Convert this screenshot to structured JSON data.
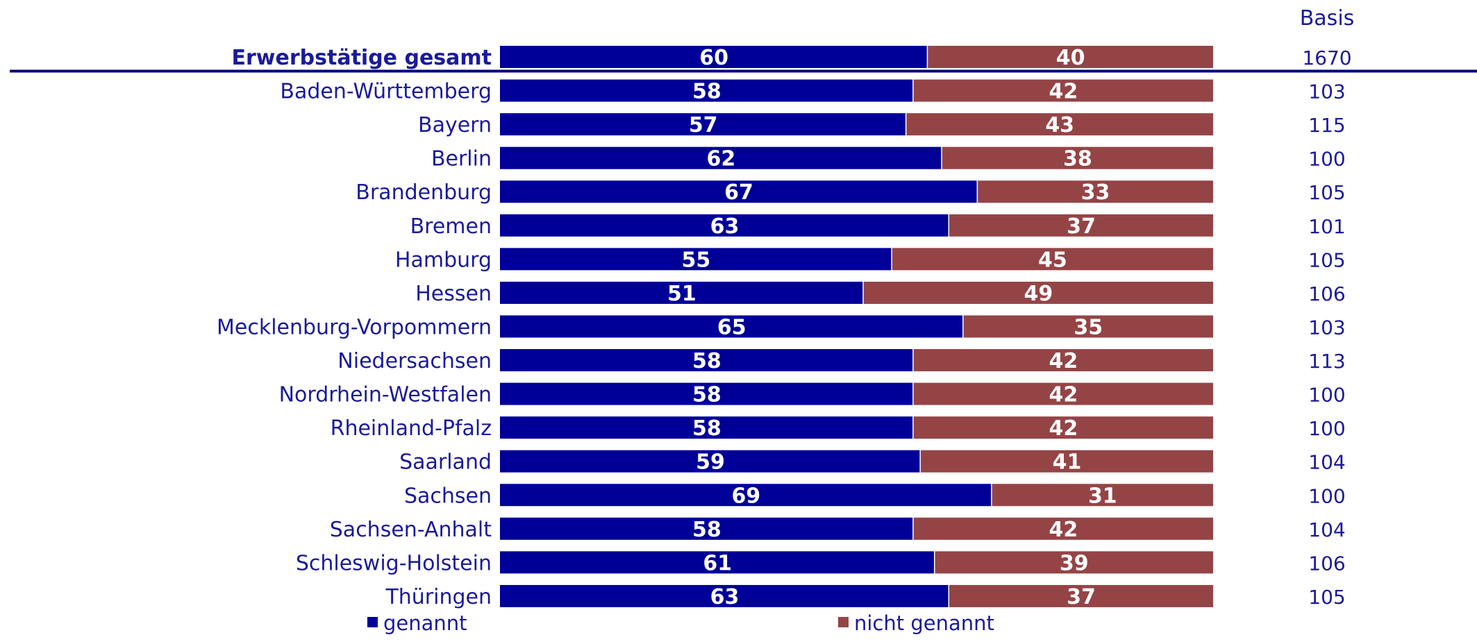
{
  "chart_data": {
    "type": "bar",
    "stacked": true,
    "orientation": "horizontal",
    "basis_header": "Basis",
    "categories": [
      "Erwerbstätige gesamt",
      "Baden-Württemberg",
      "Bayern",
      "Berlin",
      "Brandenburg",
      "Bremen",
      "Hamburg",
      "Hessen",
      "Mecklenburg-Vorpommern",
      "Niedersachsen",
      "Nordrhein-Westfalen",
      "Rheinland-Pfalz",
      "Saarland",
      "Sachsen",
      "Sachsen-Anhalt",
      "Schleswig-Holstein",
      "Thüringen"
    ],
    "highlight_category": "Erwerbstätige gesamt",
    "series": [
      {
        "name": "genannt",
        "color": "#000099",
        "values": [
          60,
          58,
          57,
          62,
          67,
          63,
          55,
          51,
          65,
          58,
          58,
          58,
          59,
          69,
          58,
          61,
          63
        ]
      },
      {
        "name": "nicht genannt",
        "color": "#954446",
        "values": [
          40,
          42,
          43,
          38,
          33,
          37,
          45,
          49,
          35,
          42,
          42,
          42,
          41,
          31,
          42,
          39,
          37
        ]
      }
    ],
    "basis": [
      1670,
      103,
      115,
      100,
      105,
      101,
      105,
      106,
      103,
      113,
      100,
      100,
      104,
      100,
      104,
      106,
      105
    ],
    "xlim": [
      0,
      100
    ],
    "legend": "bottom",
    "label_color": "#1a1a9c",
    "separator_color": "#00007a"
  }
}
